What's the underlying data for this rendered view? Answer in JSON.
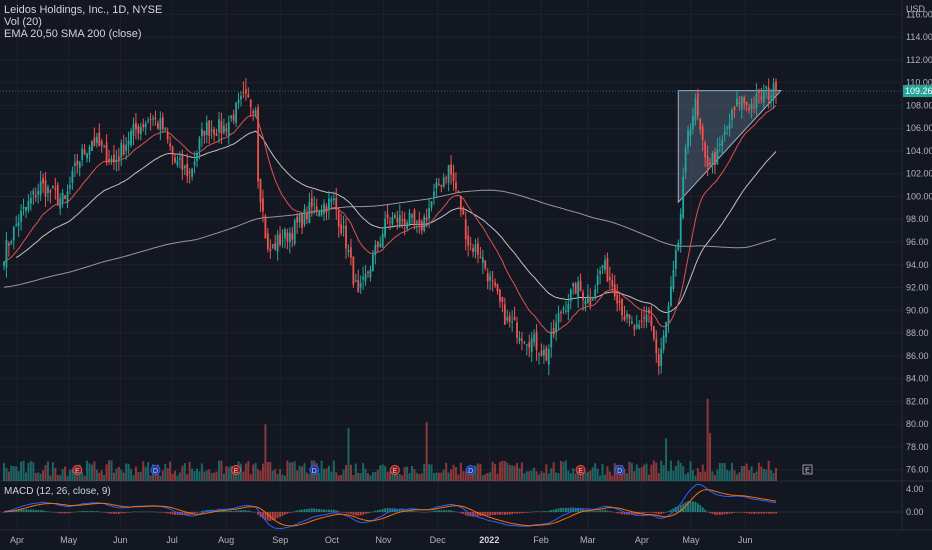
{
  "header": {
    "symbol_line": "Leidos Holdings, Inc., 1D, NYSE",
    "indicator_vol": "Vol (20)",
    "indicator_ma": "EMA 20,50 SMA 200 (close)",
    "macd_label": "MACD (12, 26, close, 9)",
    "currency": "USD",
    "last_price_tag": "109.26"
  },
  "colors": {
    "background": "#131722",
    "up": "#26a69a",
    "down": "#ef5350",
    "ema20": "#e05050",
    "ema50": "#c0c0c0",
    "sma200": "#9598a1",
    "triangle": "#5b6e85",
    "macd": "#2962ff",
    "signal": "#ff6d00"
  },
  "chart_data": {
    "type": "candlestick",
    "price_axis_ticks": [
      "116.00",
      "114.00",
      "112.00",
      "110.00",
      "108.00",
      "106.00",
      "104.00",
      "102.00",
      "100.00",
      "98.00",
      "96.00",
      "94.00",
      "92.00",
      "90.00",
      "88.00",
      "86.00",
      "84.00",
      "82.00",
      "80.00",
      "78.00",
      "76.00"
    ],
    "price_range": [
      75,
      117
    ],
    "macd_axis_ticks": [
      "4.00",
      "0.00"
    ],
    "time_axis_labels": [
      "Apr",
      "May",
      "Jun",
      "Jul",
      "Aug",
      "Sep",
      "Oct",
      "Nov",
      "Dec",
      "2022",
      "Feb",
      "Mar",
      "Apr",
      "May",
      "Jun"
    ],
    "anchors": [
      [
        0,
        95
      ],
      [
        6,
        98
      ],
      [
        15,
        101
      ],
      [
        25,
        99.5
      ],
      [
        30,
        103
      ],
      [
        36,
        105
      ],
      [
        45,
        103
      ],
      [
        52,
        105.5
      ],
      [
        60,
        107
      ],
      [
        65,
        106
      ],
      [
        70,
        103
      ],
      [
        76,
        102
      ],
      [
        82,
        106
      ],
      [
        90,
        106
      ],
      [
        98,
        108.5
      ],
      [
        103,
        108
      ],
      [
        104,
        102
      ],
      [
        108,
        95
      ],
      [
        112,
        96
      ],
      [
        118,
        97
      ],
      [
        126,
        99
      ],
      [
        135,
        99.5
      ],
      [
        140,
        96
      ],
      [
        145,
        91
      ],
      [
        150,
        94
      ],
      [
        157,
        98
      ],
      [
        165,
        98
      ],
      [
        170,
        97
      ],
      [
        178,
        101
      ],
      [
        182,
        102.5
      ],
      [
        186,
        100
      ],
      [
        190,
        96
      ],
      [
        195,
        95
      ],
      [
        200,
        92
      ],
      [
        206,
        89
      ],
      [
        212,
        88
      ],
      [
        218,
        87
      ],
      [
        222,
        86
      ],
      [
        228,
        90
      ],
      [
        234,
        92
      ],
      [
        240,
        91
      ],
      [
        245,
        94
      ],
      [
        250,
        92
      ],
      [
        255,
        89
      ],
      [
        260,
        88
      ],
      [
        264,
        90
      ],
      [
        268,
        85
      ],
      [
        272,
        90
      ],
      [
        276,
        96
      ],
      [
        280,
        106
      ],
      [
        283,
        108
      ],
      [
        287,
        103
      ],
      [
        292,
        103.5
      ],
      [
        296,
        106
      ],
      [
        301,
        108.5
      ],
      [
        306,
        108
      ],
      [
        311,
        109
      ],
      [
        316,
        109.3
      ]
    ],
    "bar_count": 317,
    "series": [
      {
        "name": "EMA 20"
      },
      {
        "name": "EMA 50"
      },
      {
        "name": "SMA 200"
      }
    ],
    "event_markers": [
      {
        "bar": 30,
        "label": "E"
      },
      {
        "bar": 62,
        "label": "D"
      },
      {
        "bar": 95,
        "label": "E"
      },
      {
        "bar": 127,
        "label": "D"
      },
      {
        "bar": 160,
        "label": "E"
      },
      {
        "bar": 191,
        "label": "D"
      },
      {
        "bar": 236,
        "label": "E"
      },
      {
        "bar": 252,
        "label": "D"
      }
    ],
    "future_marker": {
      "label": "E"
    },
    "triangle": {
      "apex_bar": 318,
      "apex_price": 109.3,
      "base_bar": 276,
      "top_price": 109.3,
      "low_price": 99.5
    },
    "last_price": 109.26
  }
}
